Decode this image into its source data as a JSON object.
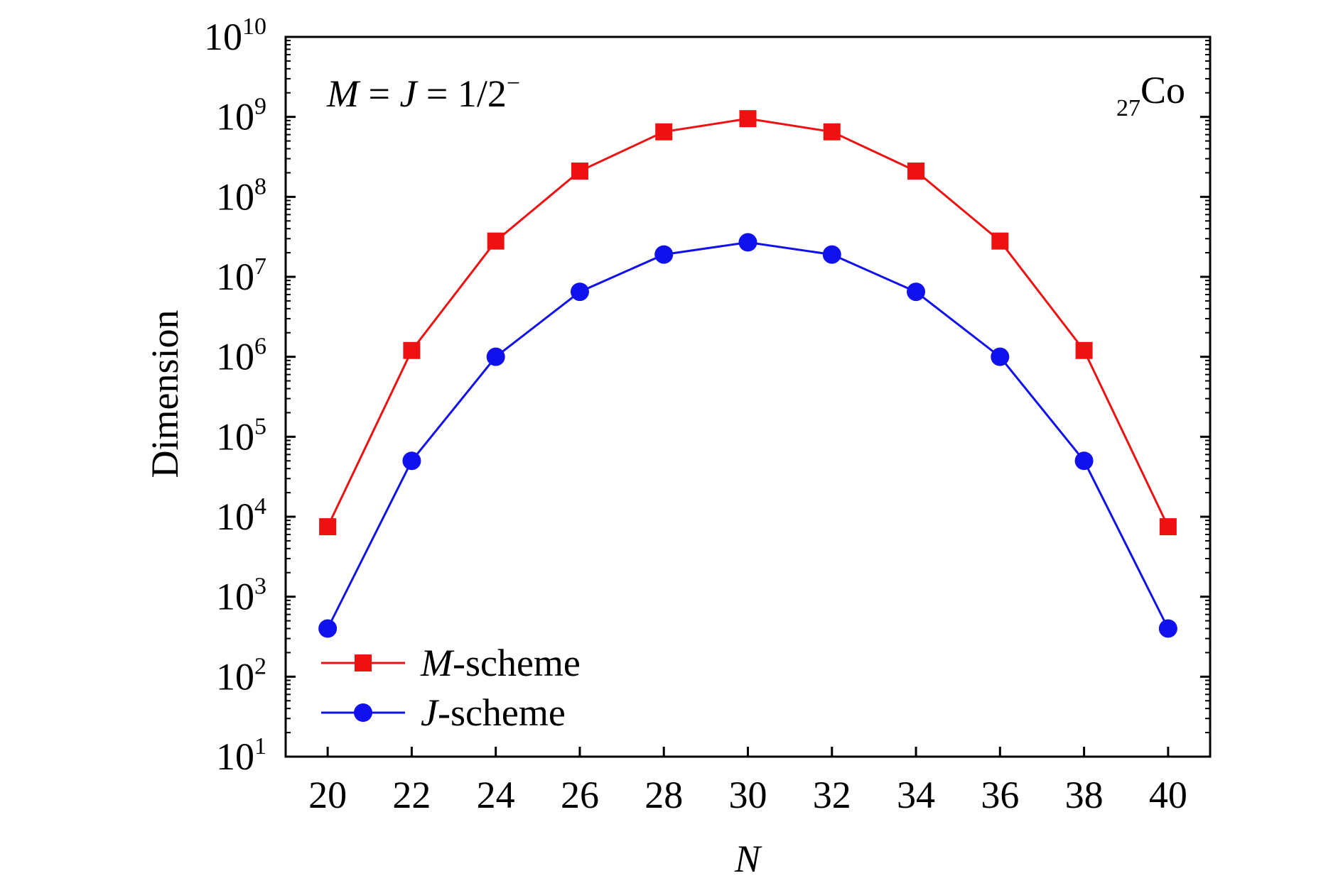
{
  "chart_data": {
    "type": "line",
    "title": "",
    "xlabel": "N",
    "ylabel": "Dimension",
    "x": [
      20,
      22,
      24,
      26,
      28,
      30,
      32,
      34,
      36,
      38,
      40
    ],
    "xlim": [
      19,
      41
    ],
    "ylim": [
      10,
      10000000000
    ],
    "yscale": "log",
    "x_ticks": [
      "20",
      "22",
      "24",
      "26",
      "28",
      "30",
      "32",
      "34",
      "36",
      "38",
      "40"
    ],
    "y_tick_base": "10",
    "y_tick_exponents": [
      "1",
      "2",
      "3",
      "4",
      "5",
      "6",
      "7",
      "8",
      "9",
      "10"
    ],
    "grid": false,
    "legend_position": "bottom-left",
    "annotations": {
      "condition_left": "M",
      "condition_eq1": " = ",
      "condition_mid": "J",
      "condition_eq2": " = 1/2",
      "condition_sup": "−",
      "nucleus_subscript": "27",
      "nucleus_symbol": "Co"
    },
    "series": [
      {
        "name": "M-scheme",
        "legend_italic": "M",
        "legend_rest": "-scheme",
        "color": "#ee1111",
        "marker": "square",
        "values": [
          7500,
          1200000,
          28000000,
          210000000,
          650000000,
          950000000,
          650000000,
          210000000,
          28000000,
          1200000,
          7500
        ]
      },
      {
        "name": "J-scheme",
        "legend_italic": "J",
        "legend_rest": "-scheme",
        "color": "#1111ee",
        "marker": "circle",
        "values": [
          400,
          50000,
          1000000,
          6500000,
          19000000,
          27000000,
          19000000,
          6500000,
          1000000,
          50000,
          400
        ]
      }
    ]
  }
}
